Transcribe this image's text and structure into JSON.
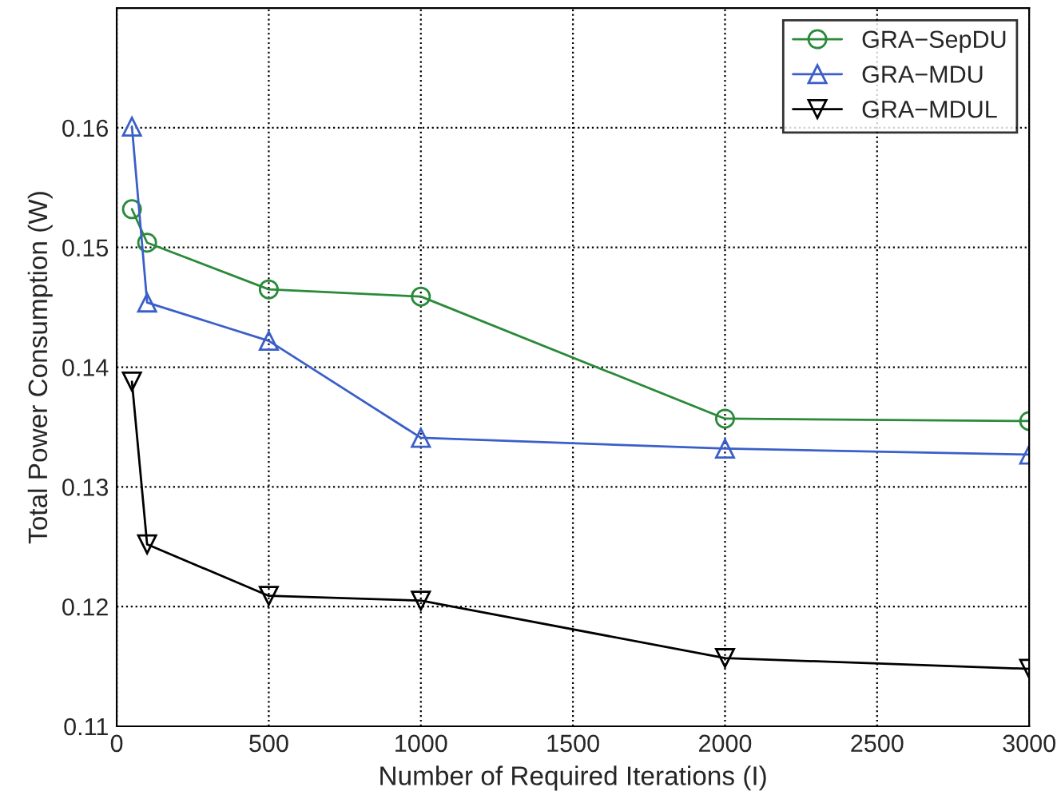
{
  "chart_data": {
    "type": "line",
    "xlabel": "Number of Required Iterations (I)",
    "ylabel": "Total Power Consumption (W)",
    "x": [
      50,
      100,
      500,
      1000,
      2000,
      3000
    ],
    "series": [
      {
        "name": "GRA−SepDU",
        "color": "#2a8a3a",
        "marker": "circle",
        "values": [
          0.1532,
          0.1504,
          0.1465,
          0.1459,
          0.1357,
          0.1355
        ]
      },
      {
        "name": "GRA−MDU",
        "color": "#3a5fc8",
        "marker": "triangle",
        "values": [
          0.1601,
          0.1454,
          0.1422,
          0.1341,
          0.1332,
          0.1327
        ]
      },
      {
        "name": "GRA−MDUL",
        "color": "#000000",
        "marker": "triangle_down",
        "values": [
          0.1388,
          0.1252,
          0.1209,
          0.1205,
          0.1157,
          0.1148
        ]
      }
    ],
    "xlim": [
      0,
      3000
    ],
    "xticks": [
      0,
      500,
      1000,
      1500,
      2000,
      2500,
      3000
    ],
    "ylim": [
      0.11,
      0.17
    ],
    "yticks": [
      0.11,
      0.12,
      0.13,
      0.14,
      0.15,
      0.16
    ],
    "grid": true,
    "line_style": "solid",
    "legend": "top right"
  }
}
